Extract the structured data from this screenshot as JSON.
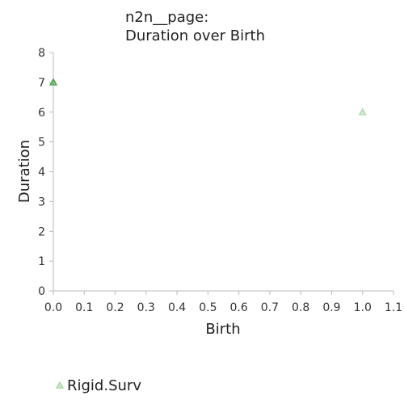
{
  "chart_data": {
    "type": "scatter",
    "title_lines": [
      "n2n__page:",
      "Duration over Birth"
    ],
    "xlabel": "Birth",
    "ylabel": "Duration",
    "xlim": [
      0.0,
      1.1
    ],
    "ylim": [
      0,
      8
    ],
    "x_ticks": [
      "0.0",
      "0.1",
      "0.2",
      "0.3",
      "0.4",
      "0.5",
      "0.6",
      "0.7",
      "0.8",
      "0.9",
      "1.0",
      "1.1"
    ],
    "y_ticks": [
      "0",
      "1",
      "2",
      "3",
      "4",
      "5",
      "6",
      "7",
      "8"
    ],
    "grid": false,
    "legend_placement": "bottom-left",
    "series": [
      {
        "name": "Rigid.Surv",
        "marker": "triangle",
        "color": "#9ed49e",
        "points": [
          {
            "x": 0.0,
            "y": 7,
            "color": "#3a9a3a"
          },
          {
            "x": 1.0,
            "y": 6,
            "color": "#a8d8a8"
          }
        ]
      }
    ]
  }
}
